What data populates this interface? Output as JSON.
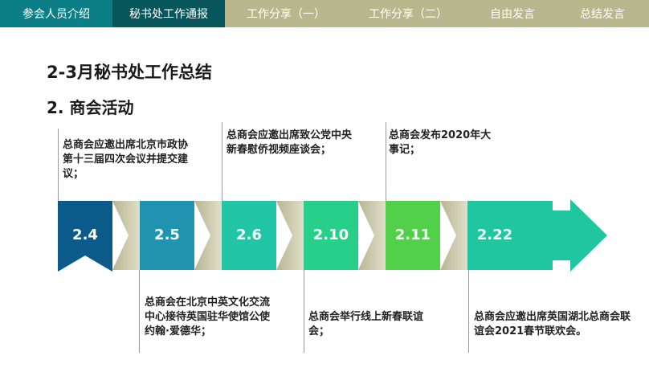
{
  "nav": {
    "tabs": [
      {
        "label": "参会人员介绍"
      },
      {
        "label": "秘书处工作通报"
      },
      {
        "label": "工作分享（一）"
      },
      {
        "label": "工作分享（二）"
      },
      {
        "label": "自由发言"
      },
      {
        "label": "总结发言"
      }
    ]
  },
  "slide": {
    "title": "2-3月秘书处工作总结",
    "subtitle": "2. 商会活动"
  },
  "timeline": {
    "dates": [
      "2.4",
      "2.5",
      "2.6",
      "2.10",
      "2.11",
      "2.22"
    ],
    "colors": [
      "#0c5a8a",
      "#1f93b0",
      "#22c6a6",
      "#27cf8a",
      "#52d04a",
      "#1fc6a0"
    ],
    "notes": {
      "top_1": "总商会应邀出席北京市政协第十三届四次会议并提交建议；",
      "bottom_2": "总商会在北京中英文化交流中心接待英国驻华使馆公使约翰·爱德华；",
      "top_3": "总商会应邀出席致公党中央新春慰侨视频座谈会；",
      "bottom_4": "总商会举行线上新春联谊会；",
      "top_5": "总商会发布2020年大事记；",
      "bottom_6": "总商会应邀出席英国湖北总商会联谊会2021春节联欢会。"
    }
  }
}
